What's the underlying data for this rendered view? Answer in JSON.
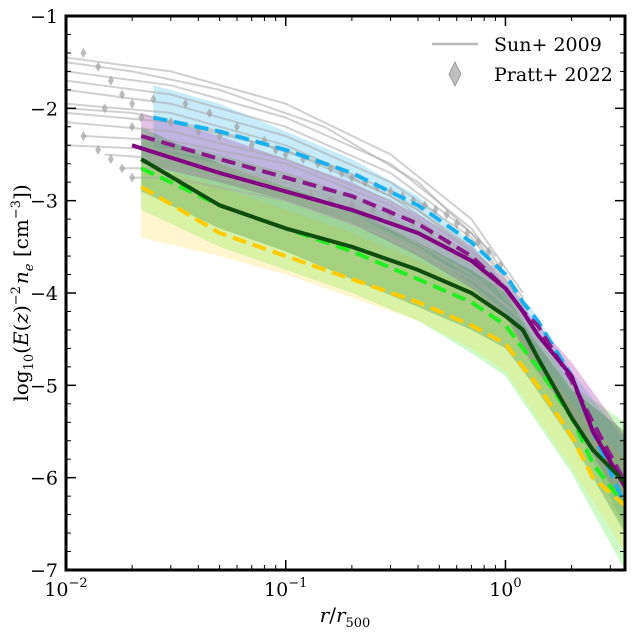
{
  "chart_data": {
    "type": "line",
    "title": "",
    "xscale": "log",
    "xlabel": "r/r500",
    "ylabel": "log10(E(z)^-2 n_e [cm^-3])",
    "xlim": [
      0.01,
      3.5
    ],
    "ylim": [
      -7,
      -1
    ],
    "grid": false,
    "legend_position": "top-right",
    "x_ticks": [
      0.01,
      0.1,
      1
    ],
    "x_tick_labels": [
      "10^-2",
      "10^-1",
      "10^0"
    ],
    "y_ticks": [
      -7,
      -6,
      -5,
      -4,
      -3,
      -2,
      -1
    ],
    "y_tick_labels": [
      "−7",
      "−6",
      "−5",
      "−4",
      "−3",
      "−2",
      "−1"
    ],
    "legend": [
      {
        "label": "Sun+ 2009",
        "marker": "line",
        "color": "#bbbbbb"
      },
      {
        "label": "Pratt+ 2022",
        "marker": "diamond",
        "color": "#aaaaaa"
      }
    ],
    "bands": [
      {
        "name": "cyan-band",
        "color": "#33bbee",
        "opacity": 0.28,
        "x": [
          0.025,
          0.05,
          0.1,
          0.2,
          0.4,
          0.7,
          1.0,
          1.3,
          2.0,
          3.5
        ],
        "upper": [
          -1.75,
          -1.95,
          -2.25,
          -2.55,
          -2.95,
          -3.45,
          -3.9,
          -4.15,
          -4.85,
          -5.6
        ],
        "lower": [
          -2.45,
          -2.6,
          -2.85,
          -3.15,
          -3.5,
          -3.9,
          -4.2,
          -4.7,
          -5.35,
          -6.55
        ]
      },
      {
        "name": "green-band",
        "color": "#66ee55",
        "opacity": 0.32,
        "x": [
          0.022,
          0.05,
          0.1,
          0.2,
          0.4,
          0.7,
          1.0,
          1.3,
          2.0,
          3.5
        ],
        "upper": [
          -2.3,
          -2.5,
          -2.7,
          -2.95,
          -3.3,
          -3.6,
          -3.9,
          -4.3,
          -5.0,
          -5.4
        ],
        "lower": [
          -3.1,
          -3.5,
          -3.75,
          -4.0,
          -4.3,
          -4.65,
          -4.9,
          -5.3,
          -5.95,
          -7.0
        ]
      },
      {
        "name": "yellow-band",
        "color": "#ffdd44",
        "opacity": 0.26,
        "x": [
          0.022,
          0.05,
          0.1,
          0.2,
          0.4,
          0.7,
          1.0,
          1.3,
          2.0,
          3.5
        ],
        "upper": [
          -2.6,
          -2.85,
          -3.1,
          -3.35,
          -3.65,
          -3.95,
          -4.25,
          -4.6,
          -5.2,
          -5.8
        ],
        "lower": [
          -3.4,
          -3.6,
          -3.8,
          -4.05,
          -4.3,
          -4.6,
          -4.85,
          -5.25,
          -5.9,
          -6.8
        ]
      },
      {
        "name": "purple-band",
        "color": "#aa33aa",
        "opacity": 0.3,
        "x": [
          0.022,
          0.05,
          0.1,
          0.2,
          0.4,
          0.7,
          1.0,
          1.3,
          2.0,
          3.5
        ],
        "upper": [
          -2.05,
          -2.3,
          -2.55,
          -2.8,
          -3.15,
          -3.5,
          -3.85,
          -4.25,
          -4.75,
          -5.55
        ],
        "lower": [
          -2.6,
          -2.8,
          -3.0,
          -3.25,
          -3.6,
          -3.95,
          -4.25,
          -4.75,
          -5.35,
          -6.35
        ]
      },
      {
        "name": "darkgreen-band",
        "color": "#338833",
        "opacity": 0.32,
        "x": [
          0.022,
          0.05,
          0.1,
          0.2,
          0.4,
          0.7,
          1.0,
          1.3,
          2.0,
          3.5
        ],
        "upper": [
          -2.2,
          -2.6,
          -2.85,
          -3.1,
          -3.45,
          -3.75,
          -4.0,
          -4.45,
          -5.05,
          -5.5
        ],
        "lower": [
          -2.9,
          -3.3,
          -3.55,
          -3.85,
          -4.15,
          -4.4,
          -4.6,
          -4.95,
          -5.6,
          -6.6
        ]
      }
    ],
    "series": [
      {
        "name": "cyan-dashed",
        "color": "#1ab0ee",
        "dashed": true,
        "width": 4,
        "x": [
          0.025,
          0.05,
          0.1,
          0.2,
          0.4,
          0.7,
          1.0,
          1.2,
          1.4,
          2.0,
          2.5,
          3.5
        ],
        "y": [
          -2.1,
          -2.25,
          -2.45,
          -2.7,
          -3.05,
          -3.45,
          -3.8,
          -4.1,
          -4.3,
          -4.9,
          -5.5,
          -6.3
        ]
      },
      {
        "name": "purple-dashed",
        "color": "#8a1a8a",
        "dashed": true,
        "width": 4,
        "x": [
          0.022,
          0.05,
          0.1,
          0.2,
          0.4,
          0.7,
          1.0,
          1.2,
          1.4,
          2.0,
          2.5,
          3.5
        ],
        "y": [
          -2.3,
          -2.55,
          -2.75,
          -2.95,
          -3.25,
          -3.6,
          -3.95,
          -4.2,
          -4.35,
          -4.95,
          -5.4,
          -6.05
        ]
      },
      {
        "name": "purple-solid",
        "color": "#800080",
        "dashed": false,
        "width": 4,
        "x": [
          0.02,
          0.05,
          0.1,
          0.2,
          0.4,
          0.7,
          1.0,
          1.2,
          1.4,
          2.0,
          2.5,
          3.5
        ],
        "y": [
          -2.4,
          -2.7,
          -2.9,
          -3.1,
          -3.35,
          -3.65,
          -3.95,
          -4.2,
          -4.45,
          -4.9,
          -5.5,
          -6.1
        ]
      },
      {
        "name": "green-dashed",
        "color": "#22ee22",
        "dashed": true,
        "width": 4,
        "x": [
          0.022,
          0.05,
          0.1,
          0.2,
          0.4,
          0.7,
          1.0,
          1.2,
          1.4,
          2.0,
          2.5,
          3.5
        ],
        "y": [
          -2.65,
          -3.05,
          -3.3,
          -3.55,
          -3.85,
          -4.1,
          -4.35,
          -4.6,
          -4.8,
          -5.35,
          -5.85,
          -6.3
        ]
      },
      {
        "name": "yellow-dashed",
        "color": "#ffcc00",
        "dashed": true,
        "width": 4,
        "x": [
          0.022,
          0.05,
          0.1,
          0.2,
          0.4,
          0.7,
          1.0,
          1.2,
          1.4,
          2.0,
          2.5,
          3.5
        ],
        "y": [
          -2.85,
          -3.35,
          -3.6,
          -3.85,
          -4.1,
          -4.35,
          -4.55,
          -4.8,
          -5.0,
          -5.55,
          -6.0,
          -6.3
        ]
      },
      {
        "name": "darkgreen-solid",
        "color": "#0d4d0d",
        "dashed": false,
        "width": 4,
        "x": [
          0.022,
          0.05,
          0.1,
          0.2,
          0.4,
          0.7,
          1.0,
          1.2,
          1.4,
          2.0,
          2.5,
          3.5
        ],
        "y": [
          -2.55,
          -3.05,
          -3.3,
          -3.5,
          -3.75,
          -4.0,
          -4.25,
          -4.4,
          -4.7,
          -5.35,
          -5.7,
          -6.05
        ]
      }
    ],
    "sun2009_curves": [
      {
        "x": [
          0.01,
          0.03,
          0.1,
          0.3,
          0.7,
          1.2
        ],
        "y": [
          -1.45,
          -1.6,
          -1.95,
          -2.5,
          -3.2,
          -4.0
        ]
      },
      {
        "x": [
          0.01,
          0.03,
          0.1,
          0.3,
          0.7,
          1.2
        ],
        "y": [
          -1.6,
          -1.75,
          -2.1,
          -2.6,
          -3.3,
          -4.05
        ]
      },
      {
        "x": [
          0.01,
          0.03,
          0.1,
          0.3,
          0.7,
          1.2
        ],
        "y": [
          -1.7,
          -1.85,
          -2.2,
          -2.7,
          -3.35,
          -4.1
        ]
      },
      {
        "x": [
          0.01,
          0.03,
          0.1,
          0.3,
          0.7,
          1.1
        ],
        "y": [
          -1.8,
          -1.95,
          -2.3,
          -2.8,
          -3.4,
          -4.0
        ]
      },
      {
        "x": [
          0.01,
          0.03,
          0.1,
          0.3,
          0.7,
          1.2
        ],
        "y": [
          -1.95,
          -2.05,
          -2.4,
          -2.9,
          -3.5,
          -4.15
        ]
      },
      {
        "x": [
          0.01,
          0.03,
          0.1,
          0.3,
          0.7,
          1.0
        ],
        "y": [
          -2.05,
          -2.15,
          -2.45,
          -2.95,
          -3.55,
          -3.95
        ]
      },
      {
        "x": [
          0.01,
          0.03,
          0.1,
          0.3,
          0.7,
          1.2
        ],
        "y": [
          -2.15,
          -2.25,
          -2.55,
          -3.0,
          -3.6,
          -4.2
        ]
      },
      {
        "x": [
          0.012,
          0.03,
          0.1,
          0.3,
          0.7,
          1.1
        ],
        "y": [
          -2.3,
          -2.35,
          -2.6,
          -3.05,
          -3.6,
          -4.05
        ]
      },
      {
        "x": [
          0.01,
          0.03,
          0.1,
          0.3,
          0.7,
          1.2
        ],
        "y": [
          -2.4,
          -2.45,
          -2.7,
          -3.1,
          -3.65,
          -4.25
        ]
      },
      {
        "x": [
          0.015,
          0.03,
          0.1,
          0.3,
          0.7,
          1.0
        ],
        "y": [
          -2.5,
          -2.55,
          -2.8,
          -3.2,
          -3.7,
          -4.0
        ]
      },
      {
        "x": [
          0.018,
          0.03,
          0.1,
          0.3,
          0.7,
          1.2
        ],
        "y": [
          -2.65,
          -2.65,
          -2.9,
          -3.3,
          -3.8,
          -4.3
        ]
      },
      {
        "x": [
          0.02,
          0.03,
          0.1,
          0.3,
          0.7,
          1.1
        ],
        "y": [
          -2.75,
          -2.75,
          -3.0,
          -3.4,
          -3.85,
          -4.2
        ]
      },
      {
        "x": [
          0.01,
          0.02,
          0.05,
          0.15,
          0.4,
          0.9
        ],
        "y": [
          -1.5,
          -1.6,
          -1.8,
          -2.2,
          -2.8,
          -3.6
        ]
      },
      {
        "x": [
          0.01,
          0.02,
          0.05,
          0.15,
          0.4,
          0.9
        ],
        "y": [
          -2.0,
          -2.05,
          -2.25,
          -2.6,
          -3.1,
          -3.75
        ]
      }
    ],
    "pratt2022_points": {
      "x": [
        0.012,
        0.014,
        0.016,
        0.018,
        0.02,
        0.012,
        0.014,
        0.016,
        0.018,
        0.02,
        0.022,
        0.025,
        0.03,
        0.035,
        0.04,
        0.045,
        0.05,
        0.06,
        0.07,
        0.08,
        0.09,
        0.1,
        0.12,
        0.14,
        0.16,
        0.18,
        0.2,
        0.23,
        0.26,
        0.3,
        0.34,
        0.38,
        0.43,
        0.48,
        0.54,
        0.6,
        0.67,
        0.75,
        0.84,
        0.95,
        0.015,
        0.02,
        0.025,
        0.03,
        0.04,
        0.05,
        0.065,
        0.08,
        0.1,
        0.13,
        0.16,
        0.2,
        0.25,
        0.3,
        0.38,
        0.46,
        0.55,
        0.65,
        0.78,
        0.92,
        1.05
      ],
      "y": [
        -1.4,
        -1.55,
        -1.7,
        -1.85,
        -1.95,
        -2.3,
        -2.45,
        -2.55,
        -2.65,
        -2.75,
        -2.1,
        -1.9,
        -2.15,
        -1.95,
        -2.25,
        -2.05,
        -2.3,
        -2.2,
        -2.4,
        -2.35,
        -2.45,
        -2.5,
        -2.55,
        -2.6,
        -2.65,
        -2.7,
        -2.75,
        -2.8,
        -2.85,
        -2.9,
        -2.95,
        -3.0,
        -3.05,
        -3.1,
        -3.15,
        -3.25,
        -3.35,
        -3.45,
        -3.55,
        -3.7,
        -2.0,
        -2.2,
        -2.35,
        -2.45,
        -2.6,
        -2.7,
        -2.8,
        -2.85,
        -2.9,
        -2.95,
        -3.0,
        -3.05,
        -3.1,
        -3.15,
        -3.25,
        -3.35,
        -3.45,
        -3.6,
        -3.75,
        -3.9,
        -4.05
      ]
    }
  }
}
